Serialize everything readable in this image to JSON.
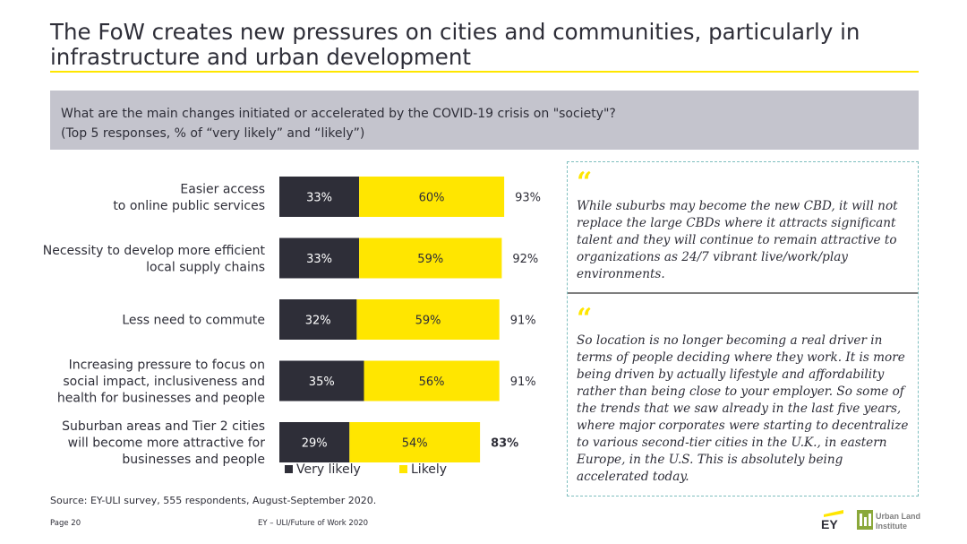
{
  "header": {
    "title": "The FoW creates new pressures on cities and communities, particularly in infrastructure and urban development"
  },
  "question": {
    "line1": "What are the main changes initiated or accelerated by the COVID-19 crisis on \"society\"?",
    "line2": "(Top 5 responses, % of “very likely” and “likely”)"
  },
  "chart_data": {
    "type": "bar",
    "orientation": "horizontal",
    "stacked": true,
    "categories": [
      [
        "Easier access",
        "to online public services"
      ],
      [
        "Necessity to develop more efficient",
        "local supply chains"
      ],
      [
        "Less need to commute"
      ],
      [
        "Increasing pressure to focus on",
        "social impact, inclusiveness and",
        "health for businesses and people"
      ],
      [
        "Suburban areas and Tier 2 cities",
        "will become more attractive for",
        "businesses and people"
      ]
    ],
    "series": [
      {
        "name": "Very likely",
        "color": "#2e2e38",
        "values": [
          33,
          33,
          32,
          35,
          29
        ],
        "labels": [
          "33%",
          "33%",
          "32%",
          "35%",
          "29%"
        ]
      },
      {
        "name": "Likely",
        "color": "#ffe600",
        "values": [
          60,
          59,
          59,
          56,
          54
        ],
        "labels": [
          "60%",
          "59%",
          "59%",
          "56%",
          "54%"
        ]
      }
    ],
    "totals": [
      "93%",
      "92%",
      "91%",
      "91%",
      "83%"
    ],
    "xlim": [
      0,
      100
    ],
    "legend": "bottom"
  },
  "quotes": [
    {
      "mark": "“",
      "text": "While suburbs may become the new CBD, it will not replace the large CBDs where it attracts significant talent and they will continue to remain attractive to organizations as 24/7 vibrant live/work/play environments."
    },
    {
      "mark": "“",
      "text": "So location is no longer becoming a real driver in terms of people deciding where they work. It is more being driven by actually lifestyle and affordability rather than being close to your employer. So some of the trends that we saw already in the last five years, where major corporates were starting to decentralize to various second-tier cities in the U.K., in eastern Europe, in the U.S. This is absolutely being accelerated today."
    }
  ],
  "footer": {
    "source": "Source: EY-ULI survey, 555 respondents, August-September 2020.",
    "page": "Page 20",
    "center": "EY – ULI/Future of Work 2020",
    "ey_logo": "EY",
    "uli_logo_line1": "Urban Land",
    "uli_logo_line2": "Institute"
  }
}
